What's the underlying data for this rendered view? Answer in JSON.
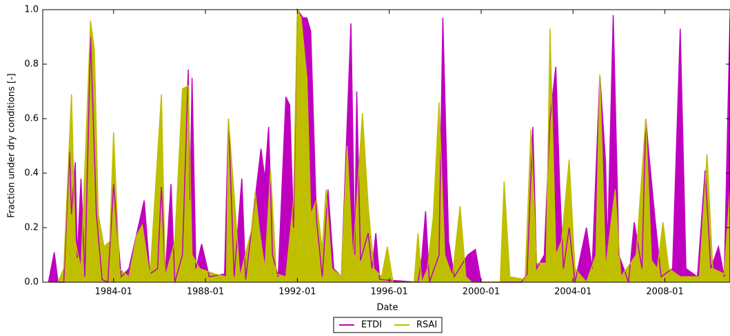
{
  "chart_data": {
    "type": "area",
    "x_label": "Date",
    "y_label": "Fraction under dry conditions [-]",
    "xlim": [
      "1980-12",
      "2010-11"
    ],
    "xticks": [
      "1984-01",
      "1988-01",
      "1992-01",
      "1996-01",
      "2000-01",
      "2004-01",
      "2008-01"
    ],
    "ylim": [
      0,
      1
    ],
    "yticks": [
      {
        "value": 0,
        "label": "0.0"
      },
      0.2,
      0.4,
      0.6,
      0.8,
      {
        "value": 1,
        "label": "1.0"
      }
    ],
    "legend": "bottom",
    "series": [
      {
        "name": "ETDI",
        "color": "#bf00bf",
        "x": [
          "1981-03",
          "1981-06",
          "1981-08",
          "1981-11",
          "1982-02",
          "1982-03",
          "1982-05",
          "1982-06",
          "1982-08",
          "1982-10",
          "1983-01",
          "1983-04",
          "1983-07",
          "1983-10",
          "1984-01",
          "1984-03",
          "1984-05",
          "1984-09",
          "1985-05",
          "1985-08",
          "1985-12",
          "1986-02",
          "1986-04",
          "1986-07",
          "1986-09",
          "1987-01",
          "1987-04",
          "1987-05",
          "1987-06",
          "1987-08",
          "1987-11",
          "1988-03",
          "1988-11",
          "1989-01",
          "1989-04",
          "1989-08",
          "1989-10",
          "1990-06",
          "1990-08",
          "1990-10",
          "1990-12",
          "1991-03",
          "1991-07",
          "1991-09",
          "1991-11",
          "1992-01",
          "1992-04",
          "1992-06",
          "1992-08",
          "1992-11",
          "1993-02",
          "1993-05",
          "1993-08",
          "1993-12",
          "1994-05",
          "1994-07",
          "1994-08",
          "1994-10",
          "1995-02",
          "1995-04",
          "1995-06",
          "1995-08",
          "1997-04",
          "1997-06",
          "1997-08",
          "1997-10",
          "1998-03",
          "1998-05",
          "1998-08",
          "1998-11",
          "1999-06",
          "1999-10",
          "2000-01",
          "2001-10",
          "2002-01",
          "2002-04",
          "2002-06",
          "2002-10",
          "2003-01",
          "2003-04",
          "2003-06",
          "2003-08",
          "2003-11",
          "2004-02",
          "2004-08",
          "2004-11",
          "2005-03",
          "2005-06",
          "2005-07",
          "2005-10",
          "2006-01",
          "2006-06",
          "2006-09",
          "2007-01",
          "2007-03",
          "2007-05",
          "2007-08",
          "2007-11",
          "2008-05",
          "2008-09",
          "2008-12",
          "2009-06",
          "2009-10",
          "2010-01",
          "2010-05",
          "2010-08",
          "2010-11"
        ],
        "values": [
          0,
          0.11,
          0,
          0,
          0.48,
          0.25,
          0.44,
          0.09,
          0.38,
          0.02,
          0.9,
          0.25,
          0.01,
          0,
          0.36,
          0.18,
          0.02,
          0.05,
          0.3,
          0.03,
          0.05,
          0.35,
          0.03,
          0.36,
          0,
          0.1,
          0.78,
          0.3,
          0.75,
          0.05,
          0.14,
          0.02,
          0.03,
          0.6,
          0.02,
          0.38,
          0.01,
          0.49,
          0.38,
          0.57,
          0.1,
          0.02,
          0.68,
          0.65,
          0.2,
          1,
          0.97,
          0.97,
          0.92,
          0.23,
          0.02,
          0.34,
          0.05,
          0.02,
          0.95,
          0.1,
          0.7,
          0.08,
          0.18,
          0.05,
          0.18,
          0.01,
          0,
          0.09,
          0.26,
          0,
          0.1,
          0.97,
          0.15,
          0.02,
          0.1,
          0.12,
          0,
          0,
          0.03,
          0.57,
          0.05,
          0.1,
          0.6,
          0.79,
          0.36,
          0.05,
          0.2,
          0,
          0.2,
          0.05,
          0.76,
          0.44,
          0.12,
          0.98,
          0.1,
          0,
          0.22,
          0.05,
          0.6,
          0.44,
          0.22,
          0.02,
          0.05,
          0.93,
          0.05,
          0.02,
          0.41,
          0.05,
          0.13,
          0.02,
          0.97
        ]
      },
      {
        "name": "RSAI",
        "color": "#bfbf00",
        "x": [
          "1981-08",
          "1981-11",
          "1982-03",
          "1982-05",
          "1982-08",
          "1983-01",
          "1983-03",
          "1983-05",
          "1983-08",
          "1983-11",
          "1984-01",
          "1984-04",
          "1984-09",
          "1985-01",
          "1985-04",
          "1985-08",
          "1986-02",
          "1986-04",
          "1986-09",
          "1987-01",
          "1987-04",
          "1987-06",
          "1987-10",
          "1988-06",
          "1988-12",
          "1989-01",
          "1989-04",
          "1989-07",
          "1990-01",
          "1990-03",
          "1990-05",
          "1990-08",
          "1990-11",
          "1991-02",
          "1991-07",
          "1991-11",
          "1992-01",
          "1992-03",
          "1992-06",
          "1992-08",
          "1992-11",
          "1993-02",
          "1993-04",
          "1993-07",
          "1993-12",
          "1994-03",
          "1994-06",
          "1994-11",
          "1995-02",
          "1995-05",
          "1995-09",
          "1995-12",
          "1996-03",
          "1997-02",
          "1997-04",
          "1997-06",
          "1997-09",
          "1997-12",
          "1998-03",
          "1998-06",
          "1998-10",
          "1999-02",
          "1999-05",
          "1999-08",
          "2000-11",
          "2001-01",
          "2001-04",
          "2001-12",
          "2002-03",
          "2002-06",
          "2002-11",
          "2003-01",
          "2003-04",
          "2003-07",
          "2003-11",
          "2004-02",
          "2004-08",
          "2005-01",
          "2005-03",
          "2005-06",
          "2005-11",
          "2006-02",
          "2006-10",
          "2007-03",
          "2007-06",
          "2007-09",
          "2007-12",
          "2008-03",
          "2008-09",
          "2009-02",
          "2009-07",
          "2009-11",
          "2010-02",
          "2010-08",
          "2010-11"
        ],
        "values": [
          0,
          0.05,
          0.69,
          0.15,
          0.05,
          0.96,
          0.85,
          0.25,
          0.13,
          0.15,
          0.55,
          0.05,
          0.02,
          0.17,
          0.21,
          0.02,
          0.69,
          0.02,
          0.15,
          0.71,
          0.72,
          0.1,
          0.05,
          0.03,
          0.02,
          0.6,
          0.32,
          0.02,
          0.19,
          0.33,
          0.2,
          0.05,
          0.41,
          0.03,
          0.02,
          0.3,
          1,
          0.97,
          0.75,
          0.25,
          0.3,
          0.12,
          0.34,
          0.05,
          0.02,
          0.5,
          0.08,
          0.62,
          0.28,
          0.05,
          0.02,
          0.13,
          0,
          0,
          0.18,
          0,
          0.05,
          0.24,
          0.66,
          0.1,
          0.02,
          0.28,
          0.02,
          0,
          0,
          0.37,
          0.02,
          0.01,
          0.56,
          0.07,
          0.07,
          0.93,
          0.1,
          0.15,
          0.45,
          0.05,
          0,
          0.1,
          0.76,
          0.05,
          0.34,
          0.02,
          0.1,
          0.6,
          0.08,
          0.05,
          0.22,
          0.05,
          0.02,
          0.02,
          0.02,
          0.47,
          0.05,
          0.03,
          0.34
        ]
      }
    ]
  }
}
